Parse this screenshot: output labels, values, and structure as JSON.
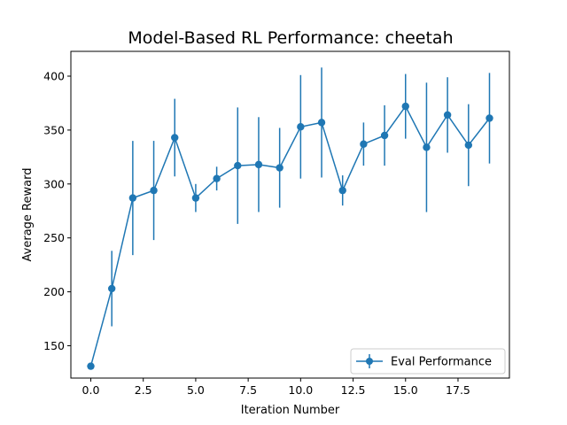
{
  "chart_data": {
    "type": "line",
    "title": "Model-Based RL Performance: cheetah",
    "xlabel": "Iteration Number",
    "ylabel": "Average Reward",
    "xlim": [
      -0.95,
      19.95
    ],
    "ylim": [
      120,
      423
    ],
    "xticks": [
      0.0,
      2.5,
      5.0,
      7.5,
      10.0,
      12.5,
      15.0,
      17.5
    ],
    "xtick_labels": [
      "0.0",
      "2.5",
      "5.0",
      "7.5",
      "10.0",
      "12.5",
      "15.0",
      "17.5"
    ],
    "yticks": [
      150,
      200,
      250,
      300,
      350,
      400
    ],
    "ytick_labels": [
      "150",
      "200",
      "250",
      "300",
      "350",
      "400"
    ],
    "grid": false,
    "legend_position": "lower right",
    "color": "#1f77b4",
    "series": [
      {
        "name": "Eval Performance",
        "x": [
          0,
          1,
          2,
          3,
          4,
          5,
          6,
          7,
          8,
          9,
          10,
          11,
          12,
          13,
          14,
          15,
          16,
          17,
          18,
          19
        ],
        "y": [
          131,
          203,
          287,
          294,
          343,
          287,
          305,
          317,
          318,
          315,
          353,
          357,
          294,
          337,
          345,
          372,
          334,
          364,
          336,
          361
        ],
        "error": [
          2,
          35,
          53,
          46,
          36,
          13,
          11,
          54,
          44,
          37,
          48,
          51,
          14,
          20,
          28,
          30,
          60,
          35,
          38,
          42
        ]
      }
    ]
  }
}
